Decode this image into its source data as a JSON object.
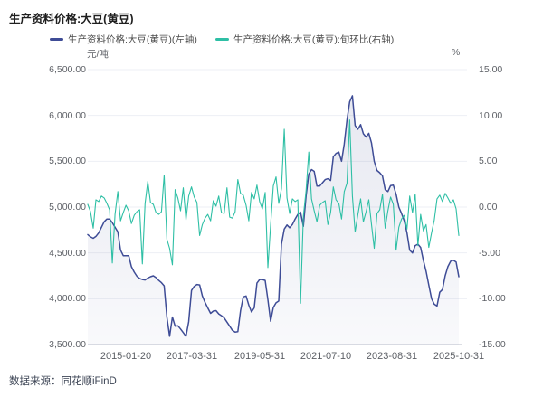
{
  "title": "生产资料价格:大豆(黄豆)",
  "legend": [
    {
      "label": "生产资料价格:大豆(黄豆)(左轴)",
      "color": "#3E4C96"
    },
    {
      "label": "生产资料价格:大豆(黄豆):旬环比(右轴)",
      "color": "#2EBFA5"
    }
  ],
  "source": "数据来源：同花顺iFinD",
  "colors": {
    "price_line": "#3E4C96",
    "mom_line": "#2EBFA5",
    "gridline": "#EDEFF4",
    "axis_line": "#B9BEC9",
    "area_fill": "#6570A5"
  },
  "chart_data": {
    "type": "line",
    "title": "生产资料价格:大豆(黄豆)",
    "grid": true,
    "legend_position": "top",
    "x_tick_labels": [
      "2015-01-20",
      "2017-03-31",
      "2019-05-31",
      "2021-07-10",
      "2023-08-31",
      "2025-10-31"
    ],
    "left_axis": {
      "unit": "元/吨",
      "min": 3500,
      "max": 6500,
      "tick_labels": [
        "6,500.00",
        "6,000.00",
        "5,500.00",
        "5,000.00",
        "4,500.00",
        "4,000.00",
        "3,500.00"
      ]
    },
    "right_axis": {
      "unit": "%",
      "min": -15,
      "max": 15,
      "tick_labels": [
        "15.00",
        "10.00",
        "5.00",
        "0.00",
        "-5.00",
        "-10.00",
        "-15.00"
      ]
    },
    "series": [
      {
        "name": "生产资料价格:大豆(黄豆)(左轴)",
        "axis": "left",
        "color": "#3E4C96",
        "fill": true,
        "values": [
          4700,
          4675,
          4660,
          4680,
          4720,
          4780,
          4840,
          4870,
          4870,
          4830,
          4780,
          4730,
          4530,
          4470,
          4470,
          4470,
          4350,
          4290,
          4245,
          4220,
          4210,
          4205,
          4225,
          4240,
          4250,
          4230,
          4200,
          4175,
          4140,
          3800,
          3590,
          3800,
          3700,
          3705,
          3670,
          3630,
          3590,
          3750,
          4090,
          4135,
          4155,
          4150,
          4030,
          3960,
          3900,
          3840,
          3865,
          3870,
          3835,
          3815,
          3790,
          3745,
          3700,
          3655,
          3635,
          3640,
          3870,
          4020,
          4030,
          3930,
          3855,
          3900,
          4170,
          4210,
          4210,
          4200,
          3990,
          3755,
          3905,
          3955,
          3975,
          4595,
          4760,
          4805,
          4775,
          4810,
          4870,
          4920,
          4945,
          4790,
          5120,
          5360,
          5410,
          5390,
          5230,
          5230,
          5265,
          5300,
          5310,
          5290,
          5550,
          5585,
          5600,
          5500,
          5690,
          5950,
          6150,
          6215,
          5890,
          5850,
          5900,
          5800,
          5765,
          5805,
          5700,
          5500,
          5400,
          5375,
          5340,
          5190,
          5170,
          5235,
          5240,
          5140,
          5000,
          4930,
          4850,
          4720,
          4530,
          4500,
          4580,
          4595,
          4560,
          4420,
          4300,
          4150,
          4000,
          3940,
          3920,
          4070,
          4100,
          4250,
          4350,
          4410,
          4420,
          4400,
          4240
        ]
      },
      {
        "name": "生产资料价格:大豆(黄豆):旬环比(右轴)",
        "axis": "right",
        "color": "#2EBFA5",
        "fill": false,
        "values": [
          0.3,
          -0.5,
          -2.3,
          0.8,
          0.6,
          1.2,
          1.0,
          0.4,
          -0.3,
          -6.1,
          -0.8,
          1.7,
          -1.5,
          -0.6,
          0.2,
          -0.4,
          -1.8,
          -0.9,
          -0.5,
          -0.3,
          -6.2,
          0.4,
          2.8,
          0.5,
          0.3,
          -0.6,
          -0.8,
          -0.5,
          3.5,
          -3.5,
          -4.5,
          -6.3,
          1.9,
          1.0,
          -0.4,
          2.1,
          -1.4,
          1.2,
          2.2,
          1.1,
          0.5,
          -3.1,
          -1.9,
          -1.2,
          -0.8,
          -1.5,
          0.7,
          0.1,
          1.2,
          -0.6,
          -0.7,
          2.1,
          -1.1,
          -1.2,
          -0.5,
          3.0,
          1.5,
          1.3,
          0.2,
          -1.5,
          1.6,
          0.9,
          2.4,
          0.6,
          -0.2,
          1.6,
          -6.6,
          -2.0,
          2.3,
          3.3,
          0.4,
          2.0,
          8.5,
          1.0,
          -0.7,
          0.9,
          0.6,
          0.8,
          -10.5,
          -1.0,
          1.8,
          6.0,
          0.9,
          -0.4,
          -1.6,
          0.2,
          0.5,
          0.7,
          -1.9,
          -0.6,
          2.2,
          0.8,
          0.4,
          -1.3,
          1.7,
          2.6,
          9.5,
          1.2,
          -2.7,
          -0.8,
          0.9,
          -1.6,
          -0.5,
          0.8,
          -1.9,
          -4.5,
          -0.7,
          -0.3,
          1.4,
          -2.3,
          -0.4,
          1.1,
          0.3,
          -4.7,
          -2.2,
          -1.3,
          -0.9,
          -2.4,
          1.2,
          -0.6,
          1.4,
          -4.2,
          -0.8,
          -2.6,
          -1.9,
          -4.4,
          -2.8,
          -1.4,
          0.9,
          1.3,
          0.6,
          1.5,
          1.0,
          0.4,
          0.8,
          -0.2,
          -3.1
        ]
      }
    ]
  }
}
